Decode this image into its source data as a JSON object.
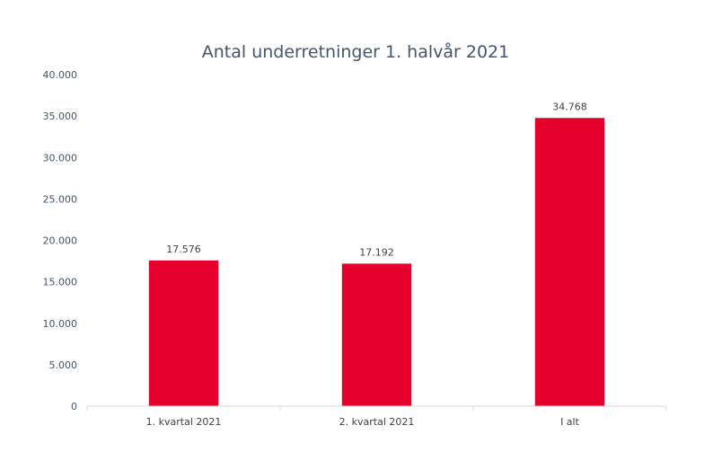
{
  "chart_data": {
    "type": "bar",
    "title": "Antal underretninger 1. halvår 2021",
    "categories": [
      "1. kvartal 2021",
      "2. kvartal 2021",
      "I alt"
    ],
    "values": [
      17576,
      17192,
      34768
    ],
    "value_labels": [
      "17.576",
      "17.192",
      "34.768"
    ],
    "y_ticks": [
      0,
      5000,
      10000,
      15000,
      20000,
      25000,
      30000,
      35000,
      40000
    ],
    "y_tick_labels": [
      "0",
      "5.000",
      "10.000",
      "15.000",
      "20.000",
      "25.000",
      "30.000",
      "35.000",
      "40.000"
    ],
    "ylim": [
      0,
      40000
    ],
    "xlabel": "",
    "ylabel": "",
    "grid": false,
    "legend": false,
    "bar_color": "#e4002b"
  }
}
